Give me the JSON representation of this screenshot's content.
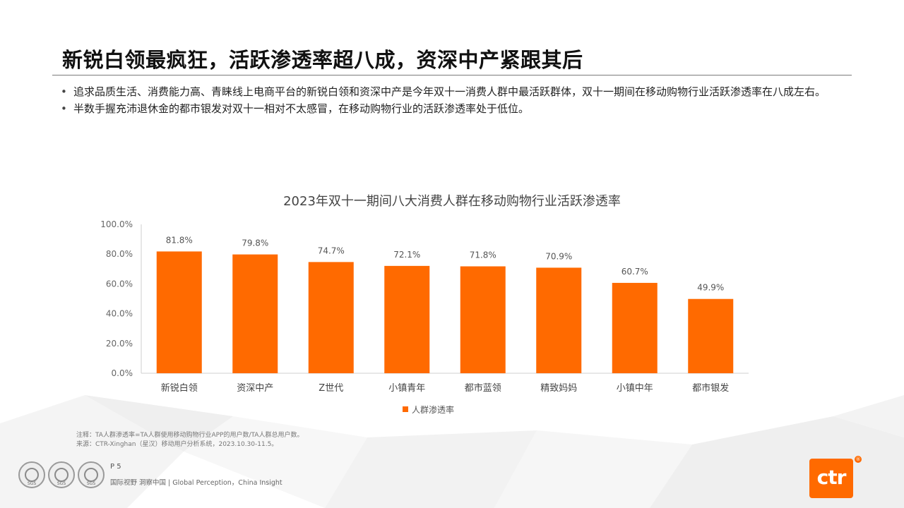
{
  "slide": {
    "title": "新锐白领最疯狂，活跃渗透率超八成，资深中产紧跟其后",
    "bullets": [
      "追求品质生活、消费能力高、青睐线上电商平台的新锐白领和资深中产是今年双十一消费人群中最活跃群体，双十一期间在移动购物行业活跃渗透率在八成左右。",
      "半数手握充沛退休金的都市银发对双十一相对不太感冒，在移动购物行业的活跃渗透率处于低位。"
    ],
    "note_lines": [
      "注释：TA人群渗透率=TA人群使用移动购物行业APP的用户数/TA人群总用户数。",
      "来源：CTR-Xinghan（星汉）移动用户分析系统，2023.10.30-11.5。"
    ],
    "footer": {
      "page": "P 5",
      "slogan": "国际视野  洞察中国 |  Global Perception，China Insight",
      "seal_label": "SGS",
      "brand": "ctr",
      "reg_mark": "®"
    }
  },
  "chart_data": {
    "type": "bar",
    "title": "2023年双十一期间八大消费人群在移动购物行业活跃渗透率",
    "categories": [
      "新锐白领",
      "资深中产",
      "Z世代",
      "小镇青年",
      "都市蓝领",
      "精致妈妈",
      "小镇中年",
      "都市银发"
    ],
    "series": [
      {
        "name": "人群渗透率",
        "values": [
          81.8,
          79.8,
          74.7,
          72.1,
          71.8,
          70.9,
          60.7,
          49.9
        ]
      }
    ],
    "value_labels": [
      "81.8%",
      "79.8%",
      "74.7%",
      "72.1%",
      "71.8%",
      "70.9%",
      "60.7%",
      "49.9%"
    ],
    "y_ticks": [
      "0.0%",
      "20.0%",
      "40.0%",
      "60.0%",
      "80.0%",
      "100.0%"
    ],
    "ylim": [
      0,
      100
    ],
    "grid": false,
    "legend": "bottom",
    "color": "#ff6a00"
  }
}
